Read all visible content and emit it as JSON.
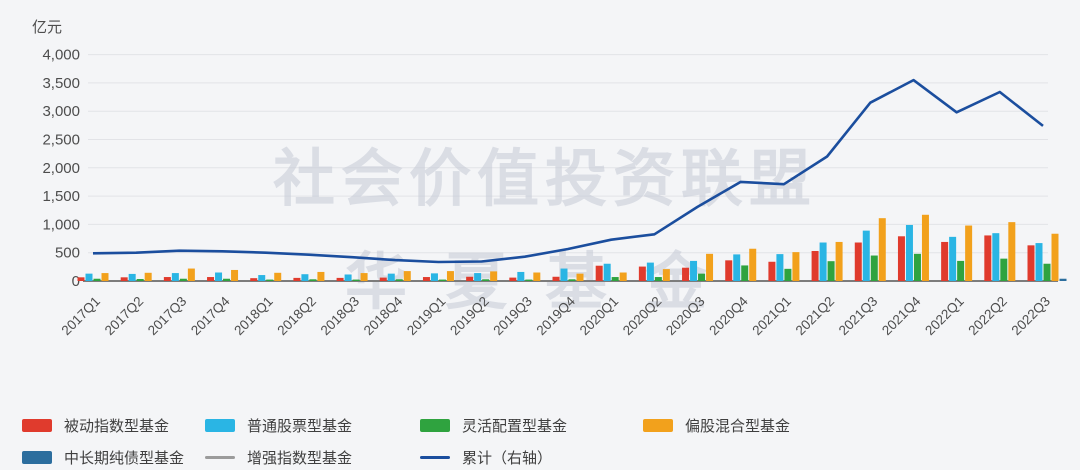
{
  "unit_label": "亿元",
  "watermark": {
    "line1": "社会价值投资联盟",
    "line2": "华夏基金"
  },
  "legend": {
    "items": [
      {
        "label": "被动指数型基金",
        "color": "#e03b2d",
        "swatch": "rect"
      },
      {
        "label": "普通股票型基金",
        "color": "#2ab5e4",
        "swatch": "rect"
      },
      {
        "label": "灵活配置型基金",
        "color": "#2fa33f",
        "swatch": "rect"
      },
      {
        "label": "偏股混合型基金",
        "color": "#f2a11c",
        "swatch": "rect"
      },
      {
        "label": "中长期纯债型基金",
        "color": "#2c6e9e",
        "swatch": "rect"
      },
      {
        "label": "增强指数型基金",
        "color": "#9b9b9b",
        "swatch": "line"
      },
      {
        "label": "累计（右轴）",
        "color": "#1b4e9e",
        "swatch": "line"
      }
    ]
  },
  "chart_data": {
    "type": "bar",
    "subtype": "grouped-bars-with-line",
    "title": "",
    "xlabel": "",
    "ylabel": "亿元",
    "ylim": [
      0,
      4000
    ],
    "y_ticks": [
      "0",
      "500",
      "1,000",
      "1,500",
      "2,000",
      "2,500",
      "3,000",
      "3,500",
      "4,000"
    ],
    "grid": true,
    "legend_position": "bottom",
    "categories": [
      "2017Q1",
      "2017Q2",
      "2017Q3",
      "2017Q4",
      "2018Q1",
      "2018Q2",
      "2018Q3",
      "2018Q4",
      "2019Q1",
      "2019Q2",
      "2019Q3",
      "2019Q4",
      "2020Q1",
      "2020Q2",
      "2020Q3",
      "2020Q4",
      "2021Q1",
      "2021Q2",
      "2021Q3",
      "2021Q4",
      "2022Q1",
      "2022Q2",
      "2022Q3"
    ],
    "series": [
      {
        "name": "被动指数型基金",
        "type": "bar",
        "color": "#e03b2d",
        "values": [
          65,
          65,
          70,
          70,
          50,
          55,
          55,
          60,
          70,
          75,
          60,
          75,
          270,
          255,
          235,
          365,
          340,
          530,
          680,
          790,
          690,
          805,
          630
        ]
      },
      {
        "name": "普通股票型基金",
        "type": "bar",
        "color": "#2ab5e4",
        "values": [
          130,
          125,
          140,
          150,
          105,
          120,
          115,
          130,
          135,
          140,
          160,
          220,
          305,
          325,
          355,
          470,
          475,
          680,
          890,
          990,
          780,
          845,
          670
        ]
      },
      {
        "name": "灵活配置型基金",
        "type": "bar",
        "color": "#2fa33f",
        "values": [
          40,
          35,
          40,
          40,
          25,
          30,
          25,
          30,
          25,
          30,
          25,
          30,
          70,
          70,
          130,
          275,
          215,
          350,
          450,
          480,
          355,
          395,
          305
        ]
      },
      {
        "name": "偏股混合型基金",
        "type": "bar",
        "color": "#f2a11c",
        "values": [
          140,
          145,
          220,
          195,
          145,
          160,
          140,
          175,
          175,
          170,
          150,
          130,
          150,
          210,
          480,
          570,
          510,
          690,
          1110,
          1170,
          980,
          1040,
          835
        ]
      },
      {
        "name": "中长期纯债型基金",
        "type": "bar",
        "color": "#2c6e9e",
        "values": [
          0,
          0,
          0,
          0,
          0,
          0,
          0,
          0,
          0,
          0,
          0,
          0,
          0,
          0,
          0,
          0,
          0,
          0,
          0,
          0,
          0,
          0,
          40
        ]
      },
      {
        "name": "增强指数型基金",
        "type": "bar",
        "color": "#9b9b9b",
        "values": [
          0,
          0,
          0,
          0,
          0,
          0,
          0,
          0,
          0,
          0,
          0,
          0,
          0,
          0,
          0,
          0,
          0,
          0,
          0,
          0,
          0,
          0,
          0
        ]
      },
      {
        "name": "累计（右轴）",
        "type": "line",
        "color": "#1b4e9e",
        "values": [
          490,
          500,
          535,
          525,
          500,
          465,
          420,
          370,
          335,
          345,
          430,
          565,
          730,
          825,
          1310,
          1750,
          1710,
          2200,
          3150,
          3550,
          2980,
          3340,
          2740
        ]
      }
    ]
  }
}
